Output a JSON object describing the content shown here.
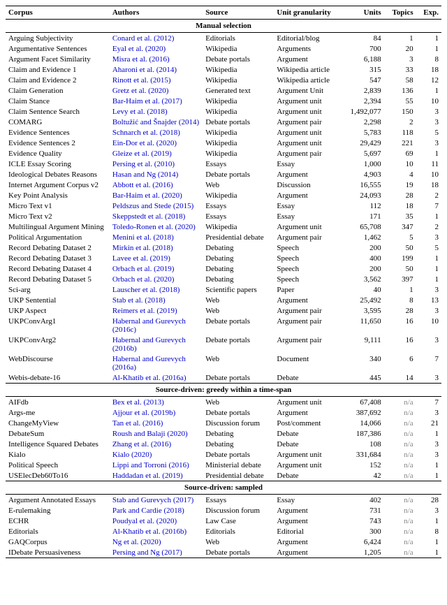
{
  "columns": [
    "Corpus",
    "Authors",
    "Source",
    "Unit granularity",
    "Units",
    "Topics",
    "Exp."
  ],
  "sections": [
    {
      "title": "Manual selection",
      "rows": [
        [
          "Arguing Subjectivity",
          "Conard et al. (2012)",
          "Editorials",
          "Editorial/blog",
          "84",
          "1",
          "1"
        ],
        [
          "Argumentative Sentences",
          "Eyal et al. (2020)",
          "Wikipedia",
          "Arguments",
          "700",
          "20",
          "1"
        ],
        [
          "Argument Facet Similarity",
          "Misra et al. (2016)",
          "Debate portals",
          "Argument",
          "6,188",
          "3",
          "8"
        ],
        [
          "Claim and Evidence 1",
          "Aharoni et al. (2014)",
          "Wikipedia",
          "Wikipedia article",
          "315",
          "33",
          "18"
        ],
        [
          "Claim and Evidence 2",
          "Rinott et al. (2015)",
          "Wikipedia",
          "Wikipedia article",
          "547",
          "58",
          "12"
        ],
        [
          "Claim Generation",
          "Gretz et al. (2020)",
          "Generated text",
          "Argument Unit",
          "2,839",
          "136",
          "1"
        ],
        [
          "Claim Stance",
          "Bar-Haim et al. (2017)",
          "Wikipedia",
          "Argument unit",
          "2,394",
          "55",
          "10"
        ],
        [
          "Claim Sentence Search",
          "Levy et al. (2018)",
          "Wikipedia",
          "Argument unit",
          "1,492,077",
          "150",
          "3"
        ],
        [
          "COMARG",
          "Boltužić and Šnajder (2014)",
          "Debate portals",
          "Argument pair",
          "2,298",
          "2",
          "3"
        ],
        [
          "Evidence Sentences",
          "Schnarch et al. (2018)",
          "Wikipedia",
          "Argument unit",
          "5,783",
          "118",
          "5"
        ],
        [
          "Evidence Sentences 2",
          "Ein-Dor et al. (2020)",
          "Wikipedia",
          "Argument unit",
          "29,429",
          "221",
          "3"
        ],
        [
          "Evidence Quality",
          "Gleize et al. (2019)",
          "Wikipedia",
          "Argument pair",
          "5,697",
          "69",
          "1"
        ],
        [
          "ICLE Essay Scoring",
          "Persing et al. (2010)",
          "Essays",
          "Essay",
          "1,000",
          "10",
          "11"
        ],
        [
          "Ideological Debates Reasons",
          "Hasan and Ng (2014)",
          "Debate portals",
          "Argument",
          "4,903",
          "4",
          "10"
        ],
        [
          "Internet Argument Corpus v2",
          "Abbott et al. (2016)",
          "Web",
          "Discussion",
          "16,555",
          "19",
          "18"
        ],
        [
          "Key Point Analysis",
          "Bar-Haim et al. (2020)",
          "Wikipedia",
          "Argument",
          "24,093",
          "28",
          "2"
        ],
        [
          "Micro Text v1",
          "Peldszus and Stede (2015)",
          "Essays",
          "Essay",
          "112",
          "18",
          "7"
        ],
        [
          "Micro Text v2",
          "Skeppstedt et al. (2018)",
          "Essays",
          "Essay",
          "171",
          "35",
          "1"
        ],
        [
          "Multilingual Argument Mining",
          "Toledo-Ronen et al. (2020)",
          "Wikipedia",
          "Argument unit",
          "65,708",
          "347",
          "2"
        ],
        [
          "Political Argumentation",
          "Menini et al. (2018)",
          "Presidential debate",
          "Argument pair",
          "1,462",
          "5",
          "3"
        ],
        [
          "Record Debating Dataset 2",
          "Mirkin et al. (2018)",
          "Debating",
          "Speech",
          "200",
          "50",
          "5"
        ],
        [
          "Record Debating Dataset 3",
          "Lavee et al. (2019)",
          "Debating",
          "Speech",
          "400",
          "199",
          "1"
        ],
        [
          "Record Debating Dataset 4",
          "Orbach et al. (2019)",
          "Debating",
          "Speech",
          "200",
          "50",
          "1"
        ],
        [
          "Record Debating Dataset 5",
          "Orbach et al. (2020)",
          "Debating",
          "Speech",
          "3,562",
          "397",
          "1"
        ],
        [
          "Sci-arg",
          "Lauscher et al. (2018)",
          "Scientific papers",
          "Paper",
          "40",
          "1",
          "3"
        ],
        [
          "UKP Sentential",
          "Stab et al. (2018)",
          "Web",
          "Argument",
          "25,492",
          "8",
          "13"
        ],
        [
          "UKP Aspect",
          "Reimers et al. (2019)",
          "Web",
          "Argument pair",
          "3,595",
          "28",
          "3"
        ],
        [
          "UKPConvArg1",
          "Habernal and Gurevych (2016c)",
          "Debate portals",
          "Argument pair",
          "11,650",
          "16",
          "10"
        ],
        [
          "UKPConvArg2",
          "Habernal and Gurevych (2016b)",
          "Debate portals",
          "Argument pair",
          "9,111",
          "16",
          "3"
        ],
        [
          "WebDiscourse",
          "Habernal and Gurevych (2016a)",
          "Web",
          "Document",
          "340",
          "6",
          "7"
        ],
        [
          "Webis-debate-16",
          "Al-Khatib et al. (2016a)",
          "Debate portals",
          "Debate",
          "445",
          "14",
          "3"
        ]
      ]
    },
    {
      "title": "Source-driven: greedy within a time-span",
      "rows": [
        [
          "AIFdb",
          "Bex et al. (2013)",
          "Web",
          "Argument unit",
          "67,408",
          "n/a",
          "7"
        ],
        [
          "Args-me",
          "Ajjour et al. (2019b)",
          "Debate portals",
          "Argument",
          "387,692",
          "n/a",
          "3"
        ],
        [
          "ChangeMyView",
          "Tan et al. (2016)",
          "Discussion forum",
          "Post/comment",
          "14,066",
          "n/a",
          "21"
        ],
        [
          "DebateSum",
          "Roush and Balaji (2020)",
          "Debating",
          "Debate",
          "187,386",
          "n/a",
          "1"
        ],
        [
          "Intelligence Squared Debates",
          "Zhang et al. (2016)",
          "Debating",
          "Debate",
          "108",
          "n/a",
          "3"
        ],
        [
          "Kialo",
          "Kialo (2020)",
          "Debate portals",
          "Argument unit",
          "331,684",
          "n/a",
          "3"
        ],
        [
          "Political Speech",
          "Lippi and Torroni (2016)",
          "Ministerial debate",
          "Argument unit",
          "152",
          "n/a",
          "1"
        ],
        [
          "USElecDeb60To16",
          "Haddadan et al. (2019)",
          "Presidential debate",
          "Debate",
          "42",
          "n/a",
          "1"
        ]
      ]
    },
    {
      "title": "Source-driven: sampled",
      "rows": [
        [
          "Argument Annotated Essays",
          "Stab and Gurevych (2017)",
          "Essays",
          "Essay",
          "402",
          "n/a",
          "28"
        ],
        [
          "E-rulemaking",
          "Park and Cardie (2018)",
          "Discussion forum",
          "Argument",
          "731",
          "n/a",
          "3"
        ],
        [
          "ECHR",
          "Poudyal et al. (2020)",
          "Law Case",
          "Argument",
          "743",
          "n/a",
          "1"
        ],
        [
          "Editorials",
          "Al-Khatib et al. (2016b)",
          "Editorials",
          "Editorial",
          "300",
          "n/a",
          "8"
        ],
        [
          "GAQCorpus",
          "Ng et al. (2020)",
          "Web",
          "Argument",
          "6,424",
          "n/a",
          "1"
        ],
        [
          "IDebate Persuasiveness",
          "Persing and Ng (2017)",
          "Debate portals",
          "Argument",
          "1,205",
          "n/a",
          "1"
        ]
      ]
    }
  ]
}
